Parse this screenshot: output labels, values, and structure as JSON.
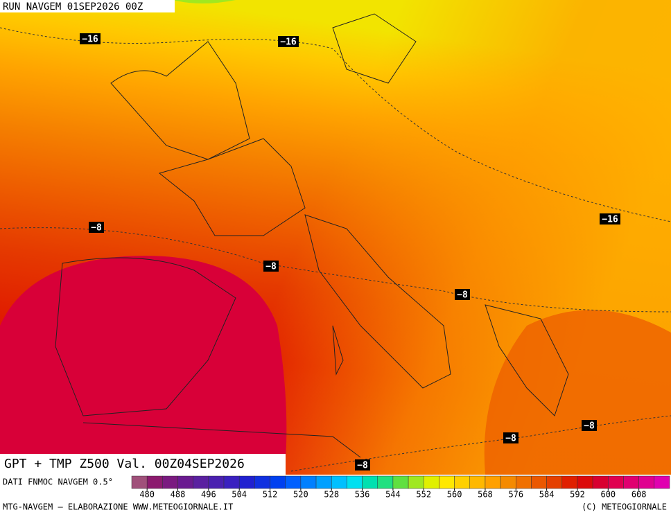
{
  "header": {
    "title": "RUN NAVGEM 01SEP2026 00Z"
  },
  "map": {
    "caption": "GPT + TMP Z500 Val. 00Z04SEP2026",
    "contour_labels": [
      "−16",
      "−16",
      "−16",
      "−8",
      "−8",
      "−8",
      "−8",
      "−8",
      "−8"
    ]
  },
  "legend": {
    "source": "DATI FNMOC NAVGEM 0.5°",
    "range": [
      476,
      616
    ],
    "ticks": [
      480,
      488,
      496,
      504,
      512,
      520,
      528,
      536,
      544,
      552,
      560,
      568,
      576,
      584,
      592,
      600,
      608
    ],
    "colors": [
      "#a0507a",
      "#8c1a6e",
      "#7a1a80",
      "#6a1a90",
      "#5a20a0",
      "#4a20b0",
      "#3a20c0",
      "#2020d0",
      "#1030e0",
      "#0040f0",
      "#0060ff",
      "#0080ff",
      "#00a0ff",
      "#00c0ff",
      "#00e0f0",
      "#00e0b0",
      "#20e080",
      "#60e040",
      "#a0e820",
      "#e0f000",
      "#ffe800",
      "#ffd000",
      "#ffb800",
      "#ffa000",
      "#f58a00",
      "#f07000",
      "#eb5800",
      "#e54000",
      "#e02000",
      "#dc0a0a",
      "#d80030",
      "#e00050",
      "#e00070",
      "#e00090",
      "#e000b0"
    ]
  },
  "footer": {
    "left": "MTG-NAVGEM – ELABORAZIONE WWW.METEOGIORNALE.IT",
    "right": "(C) METEOGIORNALE"
  }
}
